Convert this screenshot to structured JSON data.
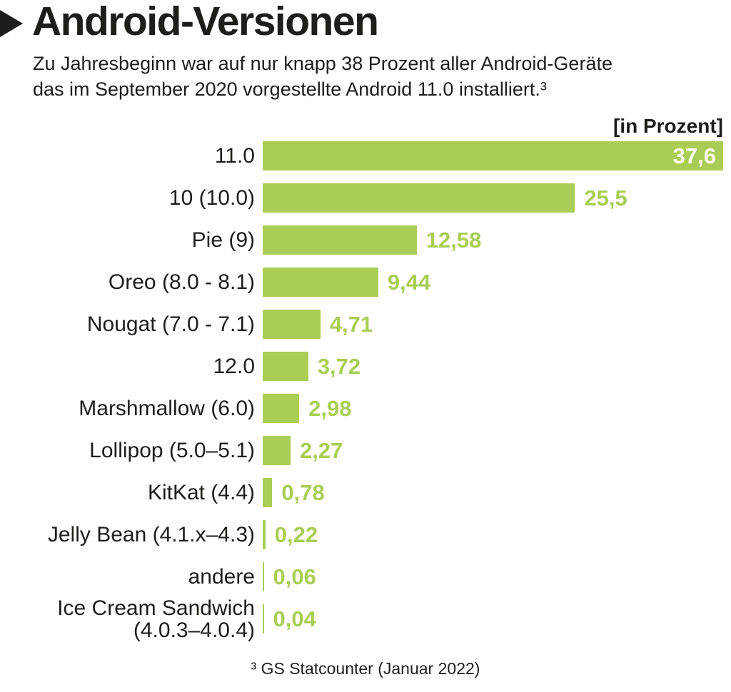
{
  "header": {
    "marker_icon": "right-triangle-bullet"
  },
  "chart_data": {
    "type": "bar",
    "orientation": "horizontal",
    "title": "Android-Versionen",
    "subtitle_lines": [
      "Zu Jahresbeginn war auf nur knapp 38 Prozent aller Android-Geräte",
      "das im September 2020 vorgestellte Android 11.0 installiert.³"
    ],
    "unit_label": "[in Prozent]",
    "categories": [
      "11.0",
      "10 (10.0)",
      "Pie (9)",
      "Oreo (8.0 - 8.1)",
      "Nougat (7.0 - 7.1)",
      "12.0",
      "Marshmallow (6.0)",
      "Lollipop (5.0–5.1)",
      "KitKat (4.4)",
      "Jelly Bean (4.1.x–4.3)",
      "andere",
      [
        "Ice Cream Sandwich",
        "(4.0.3–4.0.4)"
      ]
    ],
    "values": [
      37.6,
      25.5,
      12.58,
      9.44,
      4.71,
      3.72,
      2.98,
      2.27,
      0.78,
      0.22,
      0.06,
      0.04
    ],
    "value_labels": [
      "37,6",
      "25,5",
      "12,58",
      "9,44",
      "4,71",
      "3,72",
      "2,98",
      "2,27",
      "0,78",
      "0,22",
      "0,06",
      "0,04"
    ],
    "xlim": [
      0,
      37.6
    ],
    "value_inside_first_bar": true,
    "bar_color": "#aacd55",
    "value_text_color": "#aacd55",
    "first_value_text_color": "#ffffff",
    "grid": false,
    "legend": false,
    "footnote": "³ GS Statcounter (Januar 2022)"
  }
}
